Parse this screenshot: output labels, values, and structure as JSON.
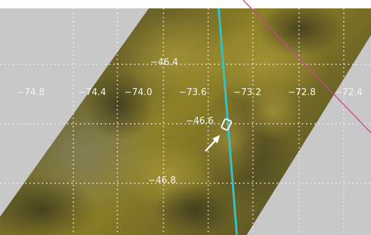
{
  "map": {
    "longitude_labels": [
      "−74.8",
      "−74.4",
      "−74.0",
      "−73.6",
      "−73.2",
      "−72.8",
      "−72.4"
    ],
    "latitude_labels": [
      "−46.4",
      "−46.6",
      "−46.8"
    ],
    "colors": {
      "background_outside_swath": "#c8c8c8",
      "gridline": "#f2f2f2",
      "track_line": "#35c3c7",
      "diagonal_line": "#c8478f",
      "marker": "#ffffff"
    },
    "features": {
      "swath_imagery": "dark olive / yellow vegetation and terrain satellite swath",
      "track_line": "cyan near-vertical line",
      "diagonal_line": "magenta diagonal line at top right",
      "target_marker": "white outlined rectangle",
      "pointer_arrow": "white arrow pointing to marker"
    }
  }
}
